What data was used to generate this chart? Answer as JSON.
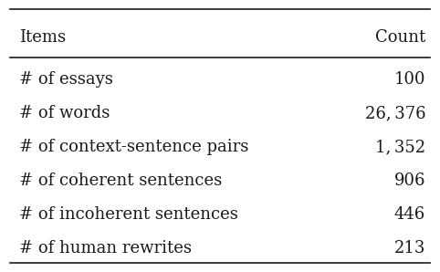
{
  "col_headers": [
    "Items",
    "Count"
  ],
  "rows": [
    [
      "# of essays",
      "100"
    ],
    [
      "# of words",
      "26, 376"
    ],
    [
      "# of context-sentence pairs",
      "1, 352"
    ],
    [
      "# of coherent sentences",
      "906"
    ],
    [
      "# of incoherent sentences",
      "446"
    ],
    [
      "# of human rewrites",
      "213"
    ]
  ],
  "background_color": "#ffffff",
  "text_color": "#1a1a1a",
  "line_width": 1.2,
  "font_size": 13.0,
  "header_font_size": 13.0
}
